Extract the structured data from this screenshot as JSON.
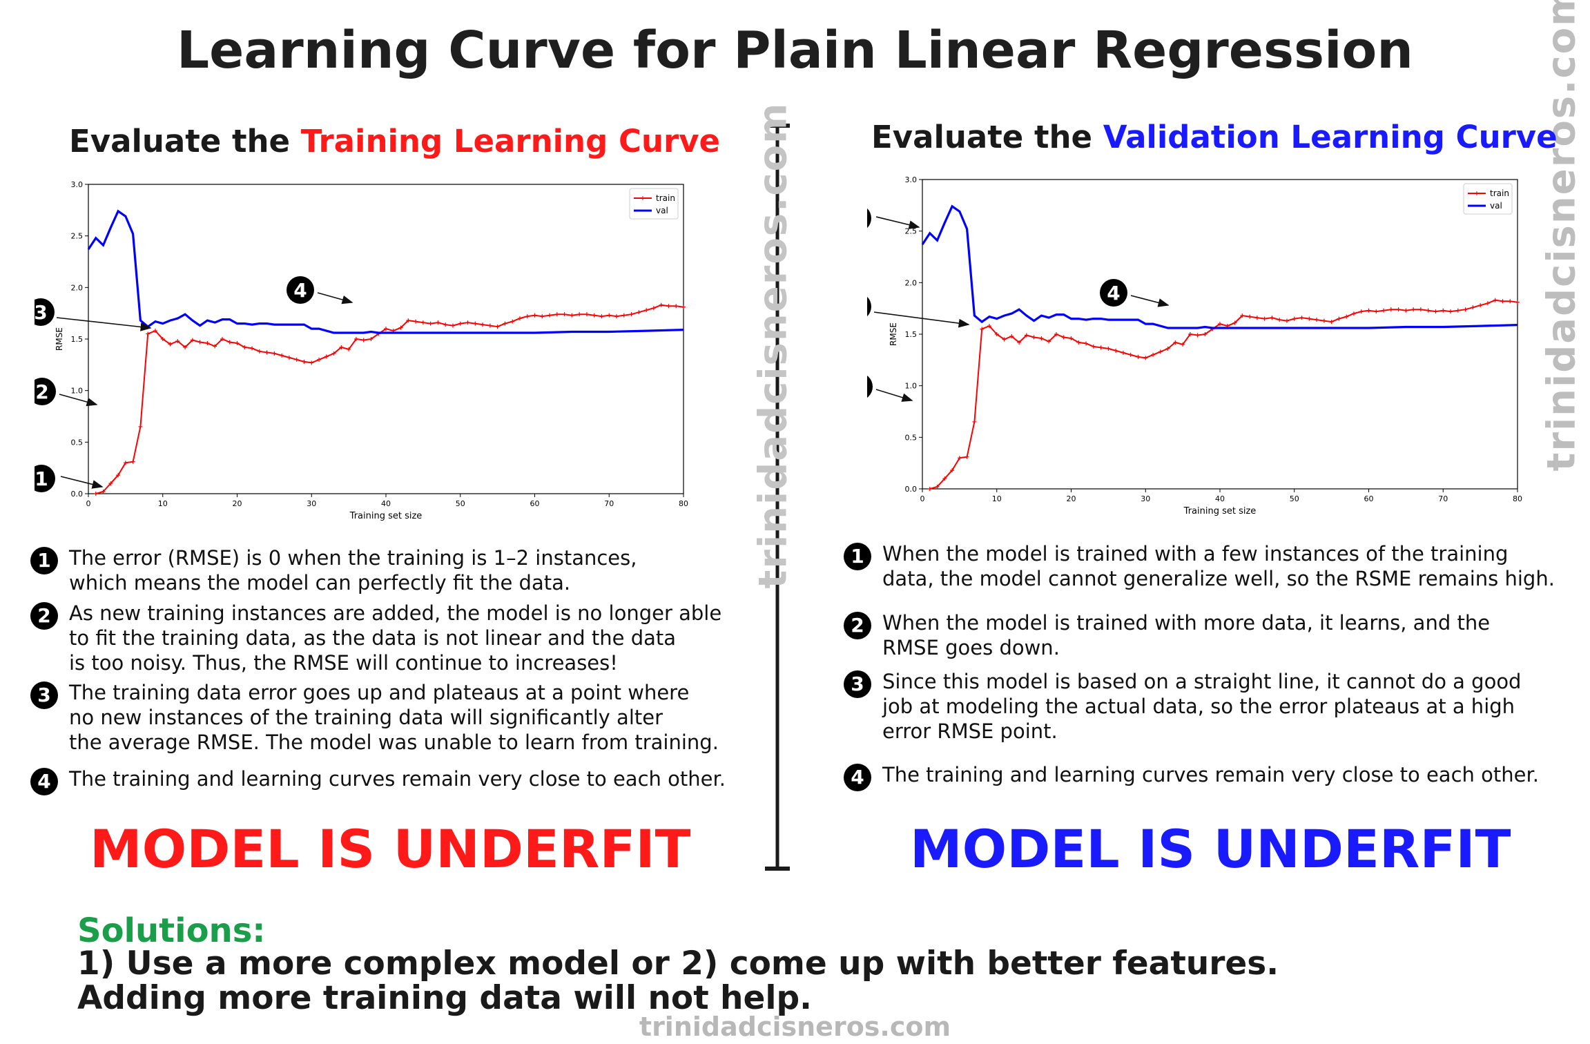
{
  "title": "Learning Curve for Plain Linear Regression",
  "watermark": "trinidadcisneros.com",
  "left": {
    "subtitle_prefix": "Evaluate the ",
    "subtitle_highlight": "Training Learning Curve",
    "notes": [
      {
        "num": "1",
        "lines": [
          "The error (RMSE) is 0 when the training is 1–2 instances,",
          "which means the model can perfectly fit the data."
        ]
      },
      {
        "num": "2",
        "lines": [
          "As new training instances are added, the model is no longer able",
          "to fit the training data, as the data is not linear and the data",
          "is too noisy. Thus, the RMSE will continue to increases!"
        ]
      },
      {
        "num": "3",
        "lines": [
          "The training data error goes up and plateaus at a point where",
          "no new instances of the training data will significantly alter",
          "the average RMSE.  The model was unable to learn from training."
        ]
      },
      {
        "num": "4",
        "lines": [
          "The training and learning curves remain very close to each other."
        ]
      }
    ],
    "verdict": "MODEL IS UNDERFIT",
    "verdict_color": "#ff1a1a"
  },
  "right": {
    "subtitle_prefix": "Evaluate the ",
    "subtitle_highlight": "Validation Learning Curve",
    "notes": [
      {
        "num": "1",
        "lines": [
          "When the model is trained with a few instances of the training",
          "data, the model cannot generalize well, so the RSME remains high."
        ]
      },
      {
        "num": "2",
        "lines": [
          "When the model is trained with more data, it learns, and the",
          "RMSE goes down."
        ]
      },
      {
        "num": "3",
        "lines": [
          "Since this model is based on a straight line, it cannot do a good",
          "job at modeling the actual data, so the error plateaus at a high",
          "error RMSE point."
        ]
      },
      {
        "num": "4",
        "lines": [
          "The training and learning curves remain very close to each other."
        ]
      }
    ],
    "verdict": "MODEL IS UNDERFIT",
    "verdict_color": "#1a1aff"
  },
  "solutions": {
    "heading": "Solutions:",
    "lines": [
      "1) Use a more complex model or 2) come up with better features.",
      "Adding more training data will not help."
    ]
  },
  "chart_data": {
    "type": "line",
    "xlabel": "Training set size",
    "ylabel": "RMSE",
    "xlim": [
      0,
      80
    ],
    "ylim": [
      0,
      3.0
    ],
    "xticks": [
      0,
      10,
      20,
      30,
      40,
      50,
      60,
      70,
      80
    ],
    "yticks": [
      0.0,
      0.5,
      1.0,
      1.5,
      2.0,
      2.5,
      3.0
    ],
    "legend_position": "top-right",
    "grid": false,
    "series": [
      {
        "name": "train",
        "color": "#ff0000",
        "marker": "+",
        "x": [
          1,
          2,
          3,
          4,
          5,
          6,
          7,
          8,
          9,
          10,
          11,
          12,
          13,
          14,
          15,
          16,
          17,
          18,
          19,
          20,
          21,
          22,
          23,
          24,
          25,
          26,
          27,
          28,
          29,
          30,
          31,
          32,
          33,
          34,
          35,
          36,
          37,
          38,
          39,
          40,
          41,
          42,
          43,
          44,
          45,
          46,
          47,
          48,
          49,
          50,
          51,
          52,
          53,
          54,
          55,
          56,
          57,
          58,
          59,
          60,
          61,
          62,
          63,
          64,
          65,
          66,
          67,
          68,
          69,
          70,
          71,
          72,
          73,
          74,
          75,
          76,
          77,
          78,
          79,
          80
        ],
        "y": [
          0.0,
          0.02,
          0.1,
          0.18,
          0.3,
          0.31,
          0.65,
          1.55,
          1.58,
          1.5,
          1.45,
          1.48,
          1.42,
          1.49,
          1.47,
          1.46,
          1.43,
          1.5,
          1.47,
          1.46,
          1.42,
          1.41,
          1.38,
          1.37,
          1.36,
          1.34,
          1.32,
          1.3,
          1.28,
          1.27,
          1.3,
          1.33,
          1.36,
          1.42,
          1.4,
          1.5,
          1.49,
          1.5,
          1.55,
          1.6,
          1.58,
          1.61,
          1.68,
          1.67,
          1.66,
          1.65,
          1.66,
          1.64,
          1.63,
          1.65,
          1.66,
          1.65,
          1.64,
          1.63,
          1.62,
          1.65,
          1.67,
          1.7,
          1.72,
          1.73,
          1.72,
          1.73,
          1.74,
          1.74,
          1.73,
          1.74,
          1.74,
          1.73,
          1.72,
          1.73,
          1.72,
          1.73,
          1.74,
          1.76,
          1.78,
          1.8,
          1.83,
          1.82,
          1.82,
          1.81
        ]
      },
      {
        "name": "val",
        "color": "#0000ff",
        "marker": "",
        "x": [
          0,
          1,
          2,
          3,
          4,
          5,
          6,
          7,
          8,
          9,
          10,
          11,
          12,
          13,
          14,
          15,
          16,
          17,
          18,
          19,
          20,
          21,
          22,
          23,
          24,
          25,
          26,
          27,
          28,
          29,
          30,
          31,
          32,
          33,
          34,
          35,
          36,
          37,
          38,
          39,
          40,
          45,
          50,
          55,
          60,
          65,
          70,
          75,
          80
        ],
        "y": [
          2.37,
          2.48,
          2.41,
          2.58,
          2.74,
          2.69,
          2.52,
          1.68,
          1.62,
          1.67,
          1.65,
          1.68,
          1.7,
          1.74,
          1.68,
          1.63,
          1.68,
          1.66,
          1.69,
          1.69,
          1.65,
          1.65,
          1.64,
          1.65,
          1.65,
          1.64,
          1.64,
          1.64,
          1.64,
          1.64,
          1.6,
          1.6,
          1.58,
          1.56,
          1.56,
          1.56,
          1.56,
          1.56,
          1.57,
          1.56,
          1.56,
          1.56,
          1.56,
          1.56,
          1.56,
          1.57,
          1.57,
          1.58,
          1.59
        ]
      }
    ]
  }
}
